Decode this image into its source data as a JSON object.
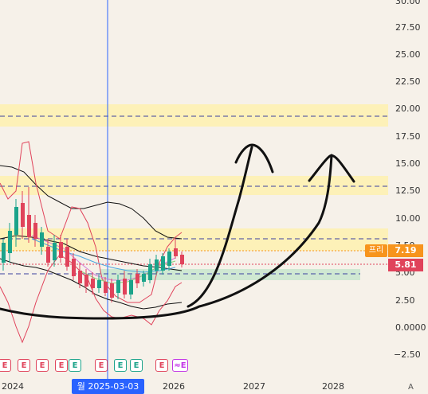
{
  "price_axis": {
    "labels": [
      "30.00",
      "27.50",
      "25.00",
      "22.50",
      "20.00",
      "17.50",
      "15.00",
      "12.50",
      "10.00",
      "7.50",
      "5.00",
      "2.50",
      "0.0000",
      "−2.50"
    ]
  },
  "time_axis": {
    "labels": [
      "2024",
      "2026",
      "2027",
      "2028"
    ],
    "cursor_date": "월 2025-03-03",
    "corner": "A"
  },
  "price_tags": {
    "premarket_label": "프리",
    "premarket_price": "7.19",
    "last_price": "5.81"
  },
  "earnings_markers": [
    "E",
    "E",
    "E",
    "E",
    "E",
    "E",
    "E",
    "E",
    "E",
    "E",
    "≈E"
  ],
  "colors": {
    "background": "#f6f1e9",
    "cursor_line": "#2962ff",
    "premarket": "#f7941d",
    "last_price": "#e0435b",
    "up_candle": "#1ba38a",
    "down_candle": "#e0435b",
    "resistance_zone": "#fdf1b8",
    "support_zone": "#cfe8d2"
  }
}
